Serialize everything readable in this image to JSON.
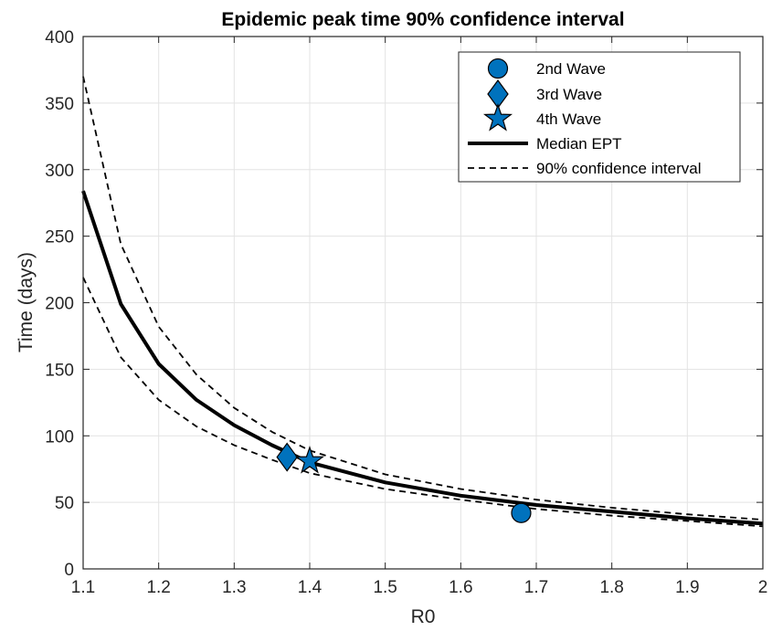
{
  "chart_data": {
    "type": "line",
    "title": "Epidemic peak time 90% confidence interval",
    "xlabel": "R0",
    "ylabel": "Time (days)",
    "xlim": [
      1.1,
      2.0
    ],
    "ylim": [
      0,
      400
    ],
    "xticks": [
      1.1,
      1.2,
      1.3,
      1.4,
      1.5,
      1.6,
      1.7,
      1.8,
      1.9,
      2.0
    ],
    "xtick_labels": [
      "1.1",
      "1.2",
      "1.3",
      "1.4",
      "1.5",
      "1.6",
      "1.7",
      "1.8",
      "1.9",
      "2"
    ],
    "yticks": [
      0,
      50,
      100,
      150,
      200,
      250,
      300,
      350,
      400
    ],
    "ytick_labels": [
      "0",
      "50",
      "100",
      "150",
      "200",
      "250",
      "300",
      "350",
      "400"
    ],
    "grid": true,
    "legend_position": "top-right",
    "x": [
      1.1,
      1.15,
      1.2,
      1.25,
      1.3,
      1.35,
      1.4,
      1.5,
      1.6,
      1.7,
      1.8,
      1.9,
      2.0
    ],
    "series": [
      {
        "name": "Median EPT",
        "style": "solid",
        "values": [
          284,
          199,
          154,
          127,
          108,
          93,
          80,
          65,
          55,
          48,
          43,
          38,
          34
        ]
      },
      {
        "name": "90% confidence interval",
        "style": "dashed",
        "values": [
          370,
          244,
          182,
          146,
          121,
          103,
          89,
          71,
          60,
          52,
          46,
          41,
          37
        ]
      },
      {
        "name": "",
        "style": "dashed",
        "values": [
          219,
          159,
          127,
          107,
          93,
          82,
          72,
          60,
          52,
          45,
          40,
          36,
          32
        ]
      }
    ],
    "markers": [
      {
        "name": "2nd Wave",
        "shape": "circle",
        "x": 1.68,
        "y": 42
      },
      {
        "name": "3rd Wave",
        "shape": "diamond",
        "x": 1.37,
        "y": 84
      },
      {
        "name": "4th Wave",
        "shape": "star",
        "x": 1.4,
        "y": 81
      }
    ],
    "colors": {
      "marker_fill": "#0072BD",
      "marker_edge": "#000000",
      "line": "#000000",
      "grid": "#e3e3e3"
    }
  }
}
